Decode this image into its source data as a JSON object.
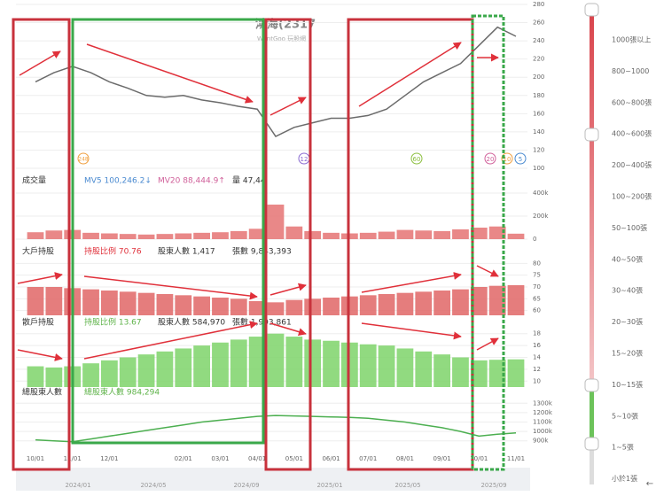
{
  "header": {
    "title": "鴻海(2317",
    "source": "WantGoo 玩股網"
  },
  "chart_data": [
    {
      "type": "line",
      "color": "#6b6b6b",
      "ylim": [
        100,
        280
      ],
      "yticks": [
        100,
        120,
        140,
        160,
        180,
        200,
        220,
        240,
        260,
        280
      ],
      "values": [
        195,
        205,
        212,
        205,
        195,
        188,
        180,
        178,
        180,
        175,
        172,
        168,
        165,
        135,
        145,
        150,
        155,
        155,
        158,
        165,
        180,
        195,
        205,
        215,
        235,
        255,
        245
      ]
    },
    {
      "type": "bar",
      "title": "成交量",
      "color": "#e57373",
      "info": [
        "MV5 100,246.2↓",
        "MV20 88,444.9↑",
        "量 47,44"
      ],
      "ylim": [
        0,
        400000
      ],
      "yticks": [
        0,
        {
          "value": 200000,
          "label": "200k"
        },
        {
          "value": 400000,
          "label": "400k"
        }
      ],
      "values": [
        60000,
        75000,
        80000,
        55000,
        50000,
        45000,
        40000,
        45000,
        50000,
        55000,
        60000,
        70000,
        90000,
        300000,
        110000,
        70000,
        55000,
        50000,
        55000,
        65000,
        80000,
        75000,
        70000,
        85000,
        100000,
        110000,
        47440
      ]
    },
    {
      "type": "bar",
      "title": "大戶持股",
      "color": "#e06666",
      "info": [
        "持股比例 70.76",
        "股東人數 1,417",
        "張數 9,843,393"
      ],
      "ylim": [
        58,
        82
      ],
      "yticks": [
        60,
        65,
        70,
        75,
        80
      ],
      "values": [
        70,
        70,
        69.5,
        69,
        68.5,
        68,
        67.5,
        67,
        66.5,
        66,
        65.5,
        65,
        64,
        63.5,
        64.5,
        65,
        65.5,
        66,
        66.5,
        67,
        67.5,
        68,
        68.5,
        69,
        70,
        70.5,
        70.76
      ]
    },
    {
      "type": "bar",
      "title": "散戶持股",
      "color": "#7ed36a",
      "info": [
        "持股比例 13.67",
        "股東人數 584,970",
        "張數 1,903,861"
      ],
      "ylim": [
        9,
        19
      ],
      "yticks": [
        10,
        12,
        14,
        16,
        18
      ],
      "values": [
        12.5,
        12.3,
        12.5,
        13,
        13.5,
        14,
        14.5,
        15,
        15.5,
        16,
        16.5,
        17,
        17.5,
        18,
        17.5,
        17,
        16.8,
        16.5,
        16.2,
        16,
        15.5,
        15,
        14.5,
        14,
        13.5,
        13.6,
        13.67
      ]
    },
    {
      "type": "line",
      "title": "總股東人數",
      "color": "#4caf50",
      "info": [
        "總股東人數 984,294"
      ],
      "ylim": [
        850000,
        1350000
      ],
      "yticks": [
        {
          "value": 900000,
          "label": "900k"
        },
        {
          "value": 1000000,
          "label": "1000k"
        },
        {
          "value": 1100000,
          "label": "1100k"
        },
        {
          "value": 1200000,
          "label": "1200k"
        },
        {
          "value": 1300000,
          "label": "1300k"
        }
      ],
      "categories": [
        "10/01",
        null,
        "11/01",
        null,
        "12/01",
        null,
        null,
        null,
        "02/01",
        null,
        "03/01",
        null,
        "04/01",
        null,
        "05/01",
        null,
        "06/01",
        null,
        "07/01",
        null,
        "08/01",
        null,
        "09/01",
        null,
        "10/01",
        null,
        "11/01"
      ],
      "values": [
        910000,
        900000,
        890000,
        920000,
        950000,
        980000,
        1010000,
        1040000,
        1070000,
        1100000,
        1120000,
        1140000,
        1160000,
        1170000,
        1165000,
        1160000,
        1155000,
        1150000,
        1140000,
        1120000,
        1100000,
        1070000,
        1040000,
        1000000,
        950000,
        970000,
        984294
      ]
    }
  ],
  "markers": [
    "248",
    "12",
    "60",
    "20",
    "10",
    "5"
  ],
  "navigator": [
    "2024/01",
    "2024/05",
    "2024/09",
    "2025/01",
    "2025/05",
    "2025/09"
  ],
  "slider": [
    "1000張以上",
    "800~1000",
    "600~800張",
    "400~600張",
    "200~400張",
    "100~200張",
    "50~100張",
    "40~50張",
    "30~40張",
    "20~30張",
    "15~20張",
    "10~15張",
    "5~10張",
    "1~5張",
    "小於1張"
  ]
}
